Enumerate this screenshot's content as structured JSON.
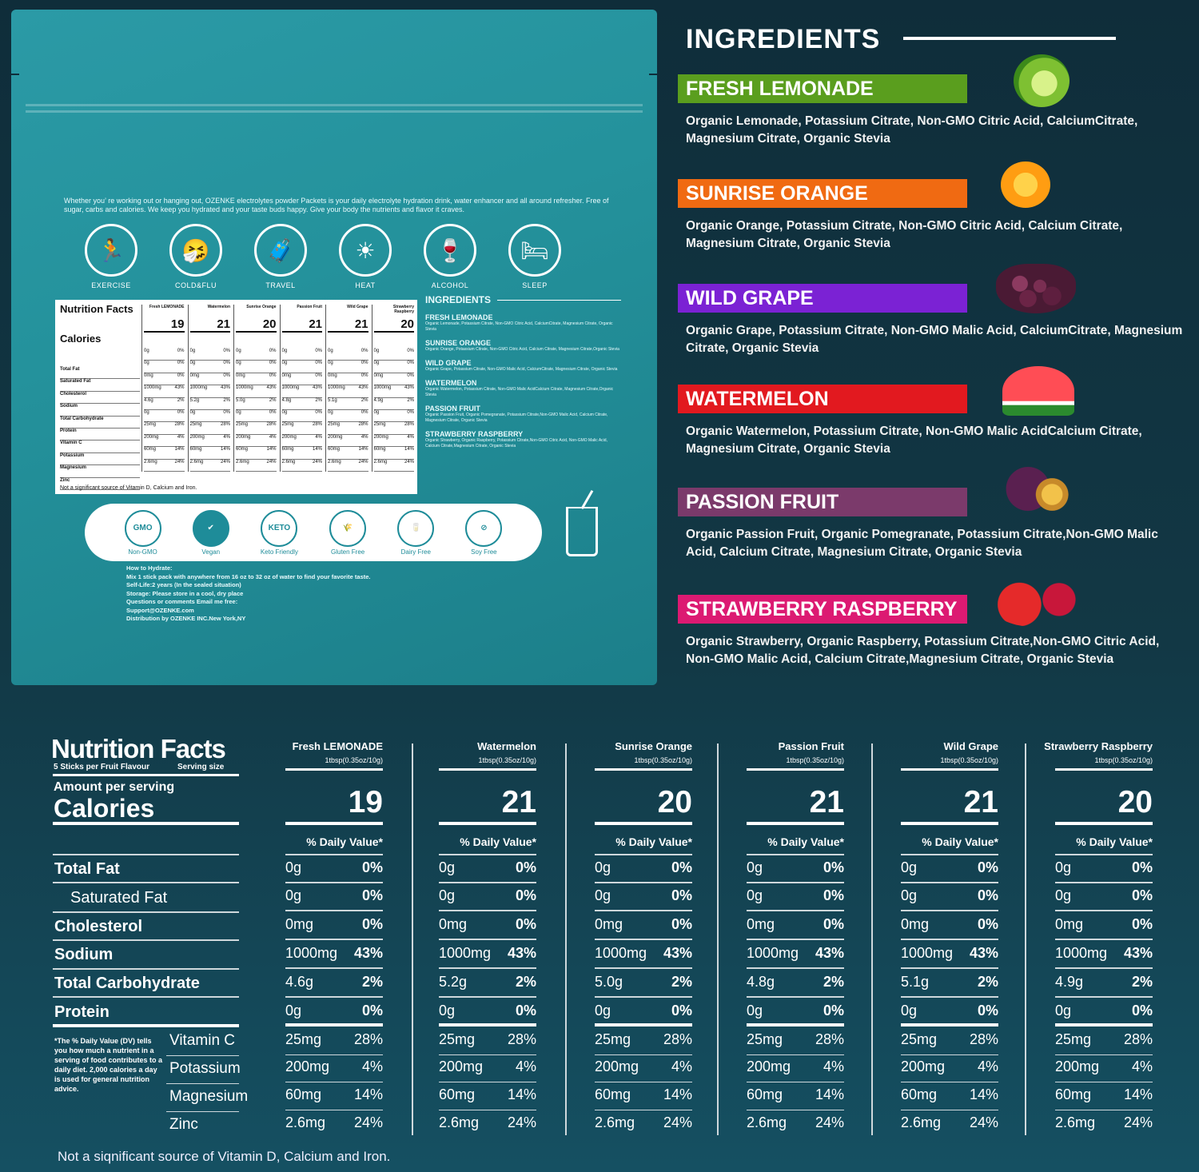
{
  "pouch": {
    "intro": "Whether you’ re working out or hanging out, OZENKE electrolytes powder Packets is your daily electrolyte hydration drink, water enhancer and all around refresher. Free of sugar, carbs and calories. We keep you hydrated and your taste buds happy. Give your body the nutrients and flavor it craves.",
    "uses": [
      {
        "label": "EXERCISE",
        "icon": "exercise-icon"
      },
      {
        "label": "COLD&FLU",
        "icon": "cold-flu-icon"
      },
      {
        "label": "TRAVEL",
        "icon": "travel-icon"
      },
      {
        "label": "HEAT",
        "icon": "sun-icon"
      },
      {
        "label": "ALCOHOL",
        "icon": "wine-icon"
      },
      {
        "label": "SLEEP",
        "icon": "bed-icon"
      }
    ],
    "mini_nf": {
      "title": "Nutrition Facts",
      "calories_label": "Calories",
      "cols": [
        {
          "name": "Fresh LEMONADE",
          "cal": "19"
        },
        {
          "name": "Watermelon",
          "cal": "21"
        },
        {
          "name": "Sunrise Orange",
          "cal": "20"
        },
        {
          "name": "Passion Fruit",
          "cal": "21"
        },
        {
          "name": "Wild Grape",
          "cal": "21"
        },
        {
          "name": "Strawberry Raspberry",
          "cal": "20"
        }
      ],
      "note": "Not a significant source of Vitamin D, Calcium and Iron."
    },
    "mini_ing": {
      "title": "INGREDIENTS",
      "items": [
        {
          "name": "FRESH LEMONADE",
          "desc": "Organic Lemonade, Potassium Citrate, Non-GMO Citric Acid, CalciumCitrate, Magnesium Citrate, Organic Stevia"
        },
        {
          "name": "SUNRISE ORANGE",
          "desc": "Organic Orange, Potassium Citrate, Non-GMO Citric Acid, Calcium Citrate, Magnesium Citrate,Organic Stevia"
        },
        {
          "name": "WILD GRAPE",
          "desc": "Organic Grape, Potassium Citrate, Non-GMO Malic Acid, CalciumCitrate, Magnesium Citrate, Organic Stevia"
        },
        {
          "name": "WATERMELON",
          "desc": "Organic Watermelon, Potassium Citrate, Non-GMO Malic AcidCalcium Citrate, Magnesium Citrate,Organic Stevia"
        },
        {
          "name": "PASSION FRUIT",
          "desc": "Organic Passion Fruit, Organic Pomegranate, Potassium Citrate,Non-GMO Malic Acid, Calcium Citrate, Magnesium Citrate, Organic Stevia"
        },
        {
          "name": "STRAWBERRY RASPBERRY",
          "desc": "Organic Strawberry, Organic Raspberry, Potassium Citrate,Non-GMO Citric Acid, Non-GMO Malic Acid, Calcium Citrate,Magnesium Citrate, Organic Stevia"
        }
      ]
    },
    "badges": [
      {
        "label": "Non-GMO",
        "mark": "GMO"
      },
      {
        "label": "Vegan",
        "mark": "✔"
      },
      {
        "label": "Keto Friendly",
        "mark": "KETO"
      },
      {
        "label": "Gluten Free",
        "mark": "🌾"
      },
      {
        "label": "Dairy Free",
        "mark": "🥛"
      },
      {
        "label": "Soy Free",
        "mark": "⊘"
      }
    ],
    "hydrate": [
      "How to Hydrate:",
      "Mix 1 stick pack with anywhere from 16 oz to 32 oz of water to find your favorite taste.",
      "Self-Life:2 years (In the sealed situation)",
      "Storage: Please store in a cool, dry place",
      "Questions or comments Email me free:",
      "Support@OZENKE.com",
      "Distribution by OZENKE INC.New York,NY"
    ]
  },
  "ingredients": {
    "title": "INGREDIENTS",
    "flavors": [
      {
        "name": "FRESH LEMONADE",
        "color": "#5a9e1e",
        "desc": "Organic Lemonade, Potassium Citrate, Non-GMO Citric Acid, CalciumCitrate, Magnesium Citrate, Organic Stevia",
        "fruit": "lime-image"
      },
      {
        "name": "SUNRISE ORANGE",
        "color": "#f06a12",
        "desc": "Organic Orange, Potassium Citrate, Non-GMO Citric Acid, Calcium Citrate, Magnesium Citrate, Organic Stevia",
        "fruit": "orange-image"
      },
      {
        "name": "WILD GRAPE",
        "color": "#7b22d4",
        "desc": "Organic Grape, Potassium Citrate, Non-GMO Malic Acid, CalciumCitrate, Magnesium Citrate, Organic Stevia",
        "fruit": "grape-image"
      },
      {
        "name": "WATERMELON",
        "color": "#e2191f",
        "desc": "Organic Watermelon, Potassium Citrate, Non-GMO Malic AcidCalcium Citrate, Magnesium Citrate, Organic Stevia",
        "fruit": "watermelon-image"
      },
      {
        "name": "PASSION FRUIT",
        "color": "#7b3a6b",
        "desc": "Organic Passion Fruit, Organic Pomegranate, Potassium Citrate,Non-GMO Malic Acid, Calcium Citrate, Magnesium Citrate,  Organic Stevia",
        "fruit": "passion-fruit-image"
      },
      {
        "name": "STRAWBERRY RASPBERRY",
        "color": "#dc1a72",
        "desc": "Organic Strawberry, Organic Raspberry, Potassium Citrate,Non-GMO Citric Acid, Non-GMO Malic Acid, Calcium Citrate,Magnesium Citrate, Organic Stevia",
        "fruit": "strawberry-image"
      }
    ]
  },
  "nutrition": {
    "title": "Nutrition Facts",
    "sticks": "5 Sticks per Fruit Flavour",
    "serving_size": "Serving size",
    "amount": "Amount per serving",
    "calories": "Calories",
    "dv_header": "% Daily Value*",
    "labels": {
      "fat": "Total Fat",
      "sat": "Saturated Fat",
      "chol": "Cholesterol",
      "sodium": "Sodium",
      "carb": "Total Carbohydrate",
      "protein": "Protein",
      "vitc": "Vitamin C",
      "potassium": "Potassium",
      "magnesium": "Magnesium",
      "zinc": "Zinc"
    },
    "dv_note": "*The % Daily Value (DV) tells you how much a nutrient in a serving of food contributes to a daily diet. 2,000 calories a day is used for general nutrition advice.",
    "columns": [
      {
        "name": "Fresh LEMONADE",
        "serving": "1tbsp(0.35oz/10g)",
        "calories": "19",
        "fat": [
          "0g",
          "0%"
        ],
        "sat": [
          "0g",
          "0%"
        ],
        "chol": [
          "0mg",
          "0%"
        ],
        "sodium": [
          "1000mg",
          "43%"
        ],
        "carb": [
          "4.6g",
          "2%"
        ],
        "protein": [
          "0g",
          "0%"
        ],
        "vitc": [
          "25mg",
          "28%"
        ],
        "potassium": [
          "200mg",
          "4%"
        ],
        "magnesium": [
          "60mg",
          "14%"
        ],
        "zinc": [
          "2.6mg",
          "24%"
        ]
      },
      {
        "name": "Watermelon",
        "serving": "1tbsp(0.35oz/10g)",
        "calories": "21",
        "fat": [
          "0g",
          "0%"
        ],
        "sat": [
          "0g",
          "0%"
        ],
        "chol": [
          "0mg",
          "0%"
        ],
        "sodium": [
          "1000mg",
          "43%"
        ],
        "carb": [
          "5.2g",
          "2%"
        ],
        "protein": [
          "0g",
          "0%"
        ],
        "vitc": [
          "25mg",
          "28%"
        ],
        "potassium": [
          "200mg",
          "4%"
        ],
        "magnesium": [
          "60mg",
          "14%"
        ],
        "zinc": [
          "2.6mg",
          "24%"
        ]
      },
      {
        "name": "Sunrise Orange",
        "serving": "1tbsp(0.35oz/10g)",
        "calories": "20",
        "fat": [
          "0g",
          "0%"
        ],
        "sat": [
          "0g",
          "0%"
        ],
        "chol": [
          "0mg",
          "0%"
        ],
        "sodium": [
          "1000mg",
          "43%"
        ],
        "carb": [
          "5.0g",
          "2%"
        ],
        "protein": [
          "0g",
          "0%"
        ],
        "vitc": [
          "25mg",
          "28%"
        ],
        "potassium": [
          "200mg",
          "4%"
        ],
        "magnesium": [
          "60mg",
          "14%"
        ],
        "zinc": [
          "2.6mg",
          "24%"
        ]
      },
      {
        "name": "Passion Fruit",
        "serving": "1tbsp(0.35oz/10g)",
        "calories": "21",
        "fat": [
          "0g",
          "0%"
        ],
        "sat": [
          "0g",
          "0%"
        ],
        "chol": [
          "0mg",
          "0%"
        ],
        "sodium": [
          "1000mg",
          "43%"
        ],
        "carb": [
          "4.8g",
          "2%"
        ],
        "protein": [
          "0g",
          "0%"
        ],
        "vitc": [
          "25mg",
          "28%"
        ],
        "potassium": [
          "200mg",
          "4%"
        ],
        "magnesium": [
          "60mg",
          "14%"
        ],
        "zinc": [
          "2.6mg",
          "24%"
        ]
      },
      {
        "name": "Wild Grape",
        "serving": "1tbsp(0.35oz/10g)",
        "calories": "21",
        "fat": [
          "0g",
          "0%"
        ],
        "sat": [
          "0g",
          "0%"
        ],
        "chol": [
          "0mg",
          "0%"
        ],
        "sodium": [
          "1000mg",
          "43%"
        ],
        "carb": [
          "5.1g",
          "2%"
        ],
        "protein": [
          "0g",
          "0%"
        ],
        "vitc": [
          "25mg",
          "28%"
        ],
        "potassium": [
          "200mg",
          "4%"
        ],
        "magnesium": [
          "60mg",
          "14%"
        ],
        "zinc": [
          "2.6mg",
          "24%"
        ]
      },
      {
        "name": "Strawberry Raspberry",
        "serving": "1tbsp(0.35oz/10g)",
        "calories": "20",
        "fat": [
          "0g",
          "0%"
        ],
        "sat": [
          "0g",
          "0%"
        ],
        "chol": [
          "0mg",
          "0%"
        ],
        "sodium": [
          "1000mg",
          "43%"
        ],
        "carb": [
          "4.9g",
          "2%"
        ],
        "protein": [
          "0g",
          "0%"
        ],
        "vitc": [
          "25mg",
          "28%"
        ],
        "potassium": [
          "200mg",
          "4%"
        ],
        "magnesium": [
          "60mg",
          "14%"
        ],
        "zinc": [
          "2.6mg",
          "24%"
        ]
      }
    ],
    "footnote": "Not a siqnificant source of Vitamin D, Calcium and Iron."
  }
}
